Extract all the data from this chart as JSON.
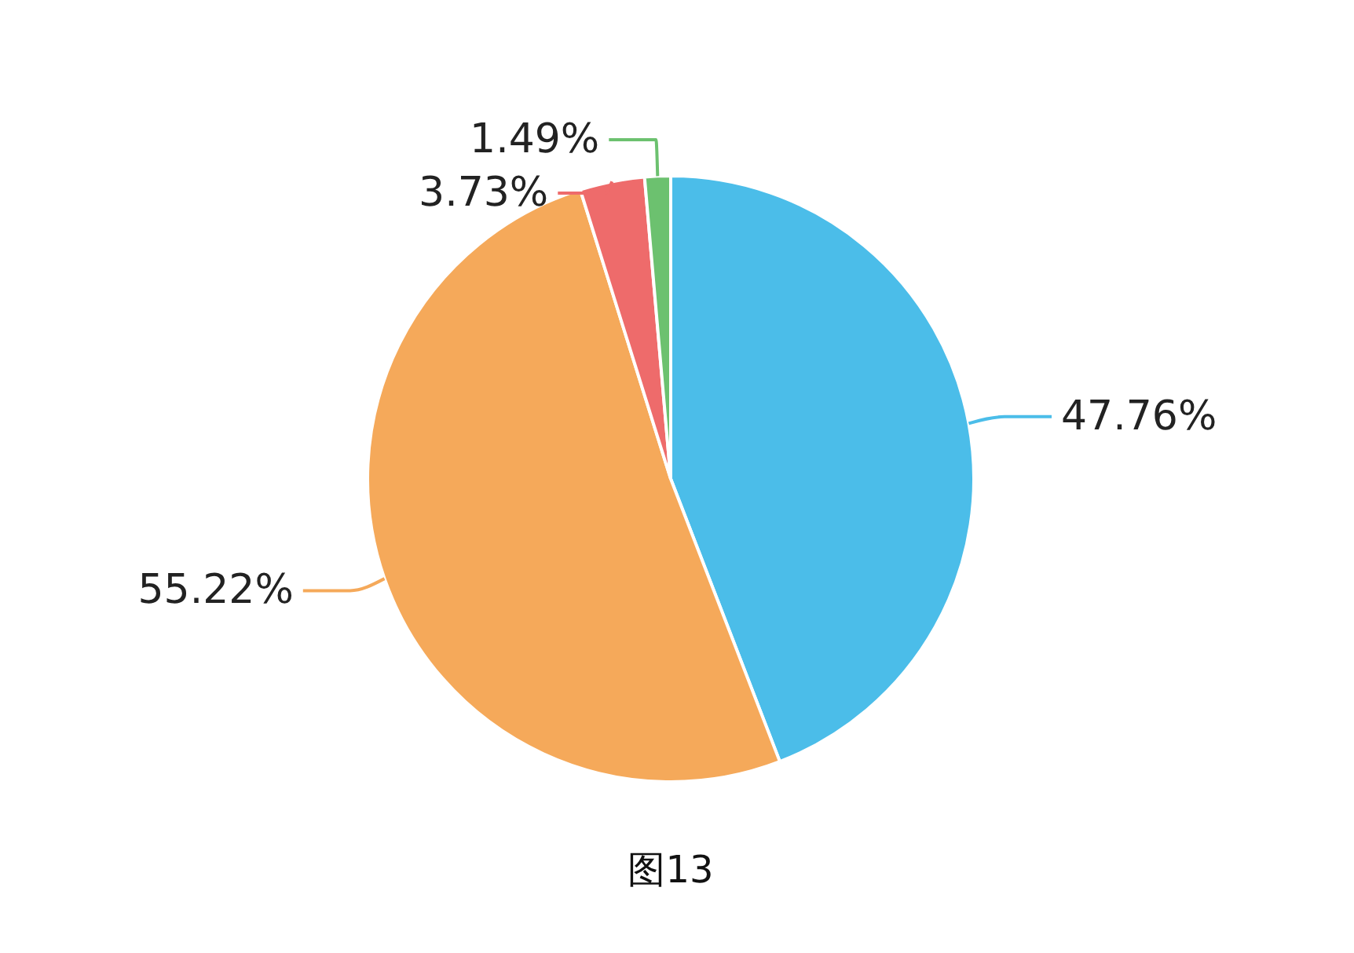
{
  "chart_data": {
    "type": "pie",
    "categories": [
      null,
      null,
      null,
      null
    ],
    "values": [
      47.76,
      55.22,
      3.73,
      1.49
    ],
    "colors": [
      "#4bbde9",
      "#f5a95a",
      "#ee6b6b",
      "#6cc16f"
    ],
    "value_labels": [
      "47.76%",
      "55.22%",
      "3.73%",
      "1.49%"
    ],
    "annotations": [
      "图13"
    ]
  }
}
